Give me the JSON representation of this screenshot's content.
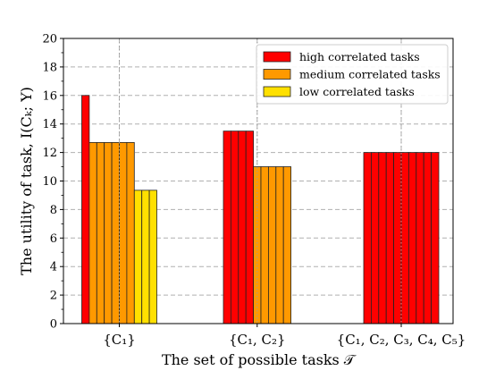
{
  "chart_data": {
    "type": "bar",
    "title": "",
    "xlabel": "The set of possible tasks 𝒯",
    "ylabel": "The utility of task, I(Cₖ; Y)",
    "ylim": [
      0,
      20
    ],
    "yticks": [
      0,
      2,
      4,
      6,
      8,
      10,
      12,
      14,
      16,
      18,
      20
    ],
    "grid": true,
    "legend_position": "top-right",
    "categories": [
      "{C₁}",
      "{C₁, C₂}",
      "{C₁, C₂, C₃, C₄, C₅}"
    ],
    "series": [
      {
        "name": "high correlated tasks",
        "color": "#ff0000",
        "bar_counts": [
          1,
          4,
          10
        ],
        "values": [
          16.0,
          13.5,
          12.0
        ]
      },
      {
        "name": "medium correlated tasks",
        "color": "#ff9900",
        "bar_counts": [
          6,
          5,
          0
        ],
        "values": [
          12.7,
          11.0,
          null
        ]
      },
      {
        "name": "low correlated tasks",
        "color": "#ffe000",
        "bar_counts": [
          3,
          0,
          0
        ],
        "values": [
          9.35,
          null,
          null
        ]
      }
    ]
  }
}
